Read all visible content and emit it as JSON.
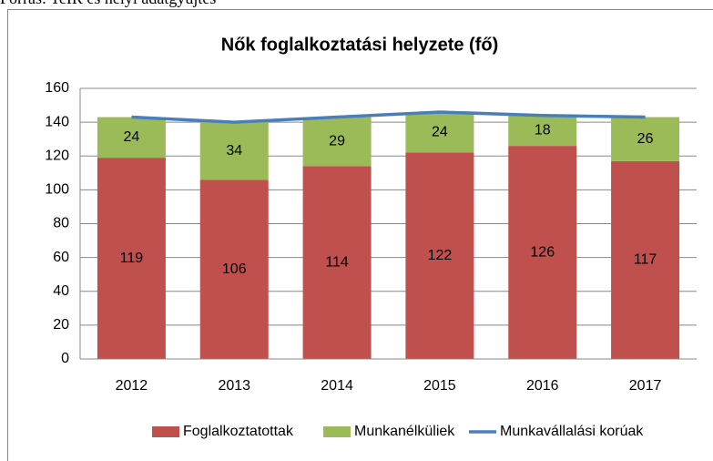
{
  "source": "Forrás: TeIR és helyi adatgyűjtés",
  "chart_data": {
    "type": "bar",
    "stacked": true,
    "title": "Nők foglalkoztatási helyzete (fő)",
    "categories": [
      "2012",
      "2013",
      "2014",
      "2015",
      "2016",
      "2017"
    ],
    "series": [
      {
        "name": "Foglalkoztatottak",
        "type": "bar",
        "color": "#c0504d",
        "values": [
          119,
          106,
          114,
          122,
          126,
          117
        ]
      },
      {
        "name": "Munkanélküliek",
        "type": "bar",
        "color": "#9bbb59",
        "values": [
          24,
          34,
          29,
          24,
          18,
          26
        ]
      },
      {
        "name": "Munkavállalási korúak",
        "type": "line",
        "color": "#4a7ebb",
        "values": [
          143,
          140,
          143,
          146,
          144,
          143
        ]
      }
    ],
    "ylim": [
      0,
      160
    ],
    "yticks": [
      0,
      20,
      40,
      60,
      80,
      100,
      120,
      140,
      160
    ],
    "grid": true,
    "legend": "bottom"
  }
}
